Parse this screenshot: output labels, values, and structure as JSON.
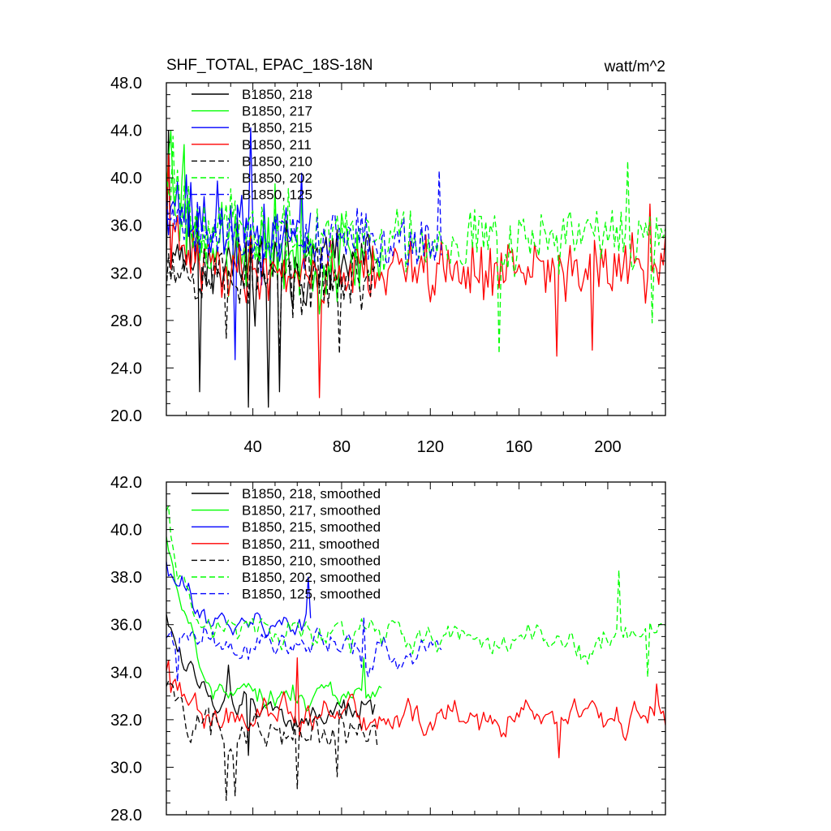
{
  "chart_data": [
    {
      "type": "line",
      "title": "SHF_TOTAL, EPAC_18S-18N",
      "units_label": "watt/m^2",
      "xlabel": "",
      "ylabel": "",
      "xlim": [
        1,
        226
      ],
      "ylim": [
        20,
        48
      ],
      "y_ticks": [
        20,
        24,
        28,
        32,
        36,
        40,
        44,
        48
      ],
      "y_tick_labels": [
        "20.0",
        "24.0",
        "28.0",
        "32.0",
        "36.0",
        "40.0",
        "44.0",
        "48.0"
      ],
      "x_ticks": [
        40,
        80,
        120,
        160,
        200
      ],
      "x_tick_labels": [
        "40",
        "80",
        "120",
        "160",
        "200"
      ],
      "legend_position": "top-left",
      "series": [
        {
          "name": "B1850, 218",
          "color": "#000000",
          "dash": "solid",
          "length": 95,
          "mean": 32.5,
          "amp": 3.8,
          "seed": 11,
          "trend_start": 2.5,
          "trend_decay": 0.06,
          "spikes": [
            [
              2,
              44
            ],
            [
              16,
              22
            ],
            [
              38,
              20.7
            ],
            [
              47,
              20.7
            ],
            [
              52,
              22
            ],
            [
              58,
              29
            ]
          ]
        },
        {
          "name": "B1850, 217",
          "color": "#00ff00",
          "dash": "solid",
          "length": 98,
          "mean": 33.2,
          "amp": 3.6,
          "seed": 23,
          "trend_start": 7,
          "trend_decay": 0.08,
          "spikes": [
            [
              3,
              44
            ],
            [
              9,
              42.8
            ],
            [
              29,
              30
            ],
            [
              50,
              39.5
            ],
            [
              80,
              37
            ]
          ]
        },
        {
          "name": "B1850, 215",
          "color": "#0000ff",
          "dash": "solid",
          "length": 66,
          "mean": 35.2,
          "amp": 3.3,
          "seed": 37,
          "trend_start": 4,
          "trend_decay": 0.07,
          "spikes": [
            [
              32,
              24.7
            ],
            [
              39,
              44.2
            ],
            [
              44,
              31
            ],
            [
              62,
              40.4
            ]
          ]
        },
        {
          "name": "B1850, 211",
          "color": "#ff0000",
          "dash": "solid",
          "length": 226,
          "mean": 32.2,
          "amp": 2.6,
          "seed": 41,
          "trend_start": 3,
          "trend_decay": 0.09,
          "spikes": [
            [
              2,
              42
            ],
            [
              70,
              21.5
            ],
            [
              118,
              35.2
            ],
            [
              177,
              25
            ],
            [
              193,
              25.5
            ],
            [
              219,
              37.8
            ]
          ]
        },
        {
          "name": "B1850, 210",
          "color": "#000000",
          "dash": "dashed",
          "length": 96,
          "mean": 31.5,
          "amp": 2.8,
          "seed": 53,
          "trend_start": 2,
          "trend_decay": 0.07,
          "spikes": [
            [
              28,
              26.5
            ],
            [
              52,
              24.8
            ],
            [
              79,
              25.2
            ]
          ]
        },
        {
          "name": "B1850, 202",
          "color": "#00ff00",
          "dash": "dashed",
          "length": 226,
          "mean": 35.0,
          "amp": 3.0,
          "seed": 67,
          "trend_start": 6,
          "trend_decay": 0.08,
          "spikes": [
            [
              4,
              43.5
            ],
            [
              151,
              25.2
            ],
            [
              209,
              41.4
            ],
            [
              220,
              27.8
            ]
          ]
        },
        {
          "name": "B1850, 125",
          "color": "#0000ff",
          "dash": "dashed",
          "length": 125,
          "mean": 34.8,
          "amp": 2.4,
          "seed": 79,
          "trend_start": 3,
          "trend_decay": 0.07,
          "spikes": [
            [
              2,
              36.5
            ],
            [
              124,
              40.6
            ]
          ]
        }
      ]
    },
    {
      "type": "line",
      "title": "",
      "xlabel": "",
      "ylabel": "",
      "xlim": [
        1,
        226
      ],
      "ylim": [
        28,
        42
      ],
      "y_ticks": [
        28,
        30,
        32,
        34,
        36,
        38,
        40,
        42
      ],
      "y_tick_labels": [
        "28.0",
        "30.0",
        "32.0",
        "34.0",
        "36.0",
        "38.0",
        "40.0",
        "42.0"
      ],
      "x_ticks": [
        40,
        80,
        120,
        160,
        200
      ],
      "x_tick_labels": [],
      "legend_position": "top-left",
      "series": [
        {
          "name": "B1850, 218, smoothed",
          "color": "#000000",
          "dash": "solid",
          "length": 95,
          "mean": 32.3,
          "amp": 0.9,
          "seed": 12,
          "trend_start": 4.6,
          "trend_decay": 0.09,
          "spikes": [
            [
              29,
              34.3
            ],
            [
              38,
              30.5
            ]
          ]
        },
        {
          "name": "B1850, 217, smoothed",
          "color": "#00ff00",
          "dash": "solid",
          "length": 98,
          "mean": 33.0,
          "amp": 0.9,
          "seed": 24,
          "trend_start": 7.0,
          "trend_decay": 0.1,
          "spikes": [
            [
              90,
              34.6
            ]
          ]
        },
        {
          "name": "B1850, 215, smoothed",
          "color": "#0000ff",
          "dash": "solid",
          "length": 66,
          "mean": 36.0,
          "amp": 0.8,
          "seed": 38,
          "trend_start": 2.5,
          "trend_decay": 0.1,
          "spikes": [
            [
              65,
              38.0
            ]
          ]
        },
        {
          "name": "B1850, 211, smoothed",
          "color": "#ff0000",
          "dash": "solid",
          "length": 226,
          "mean": 32.0,
          "amp": 1.0,
          "seed": 42,
          "trend_start": 2.4,
          "trend_decay": 0.15,
          "spikes": [
            [
              2,
              34.5
            ],
            [
              60,
              34.6
            ],
            [
              178,
              30.4
            ],
            [
              222,
              33.5
            ]
          ]
        },
        {
          "name": "B1850, 210, smoothed",
          "color": "#000000",
          "dash": "dashed",
          "length": 96,
          "mean": 31.4,
          "amp": 1.2,
          "seed": 54,
          "trend_start": 2.2,
          "trend_decay": 0.1,
          "spikes": [
            [
              28,
              28.6
            ],
            [
              32,
              28.8
            ],
            [
              60,
              29.1
            ],
            [
              78,
              29.6
            ]
          ]
        },
        {
          "name": "B1850, 202, smoothed",
          "color": "#00ff00",
          "dash": "dashed",
          "length": 226,
          "mean": 35.5,
          "amp": 0.9,
          "seed": 68,
          "trend_start": 5.5,
          "trend_decay": 0.12,
          "spikes": [
            [
              2,
              41.0
            ],
            [
              205,
              38.3
            ],
            [
              218,
              33.8
            ]
          ]
        },
        {
          "name": "B1850, 125, smoothed",
          "color": "#0000ff",
          "dash": "dashed",
          "length": 125,
          "mean": 35.0,
          "amp": 0.9,
          "seed": 80,
          "trend_start": 0.5,
          "trend_decay": 0.1,
          "spikes": [
            [
              6,
              33.6
            ],
            [
              90,
              36.3
            ]
          ]
        }
      ]
    }
  ]
}
